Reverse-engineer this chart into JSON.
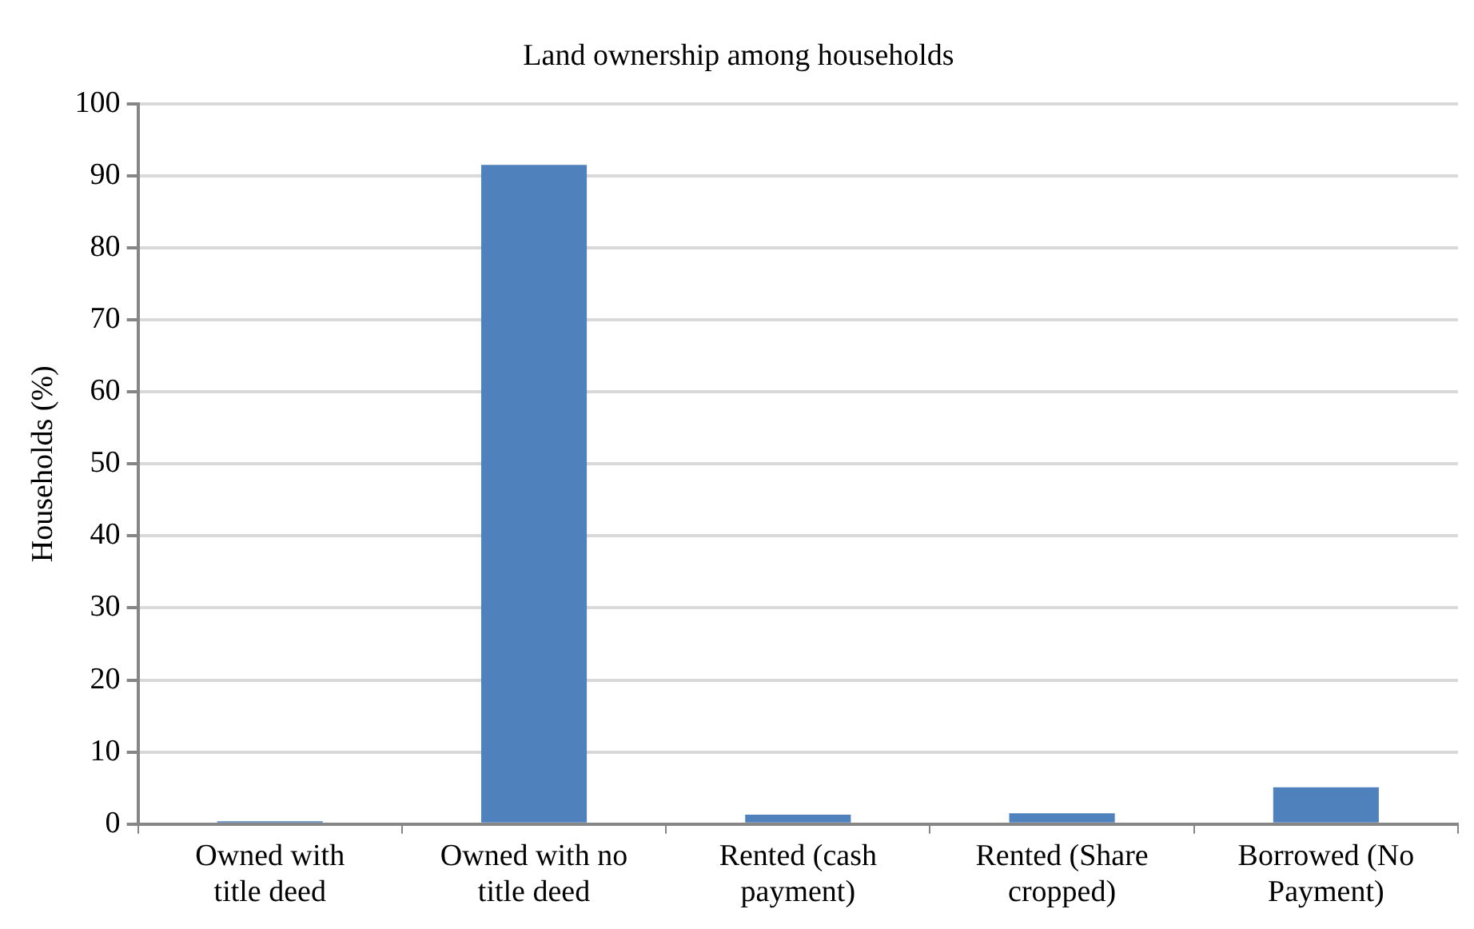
{
  "chart_data": {
    "type": "bar",
    "title": "Land ownership among households",
    "ylabel": "Households (%)",
    "categories": [
      "Owned with title deed",
      "Owned with no title deed",
      "Rented (cash payment)",
      "Rented (Share cropped)",
      "Borrowed (No Payment)"
    ],
    "values": [
      0.4,
      91.5,
      1.3,
      1.5,
      5.1
    ],
    "color": "#4f81bd",
    "ylim": [
      0,
      100
    ],
    "yticks": [
      0,
      10,
      20,
      30,
      40,
      50,
      60,
      70,
      80,
      90,
      100
    ],
    "grid": "y",
    "legend": false
  }
}
